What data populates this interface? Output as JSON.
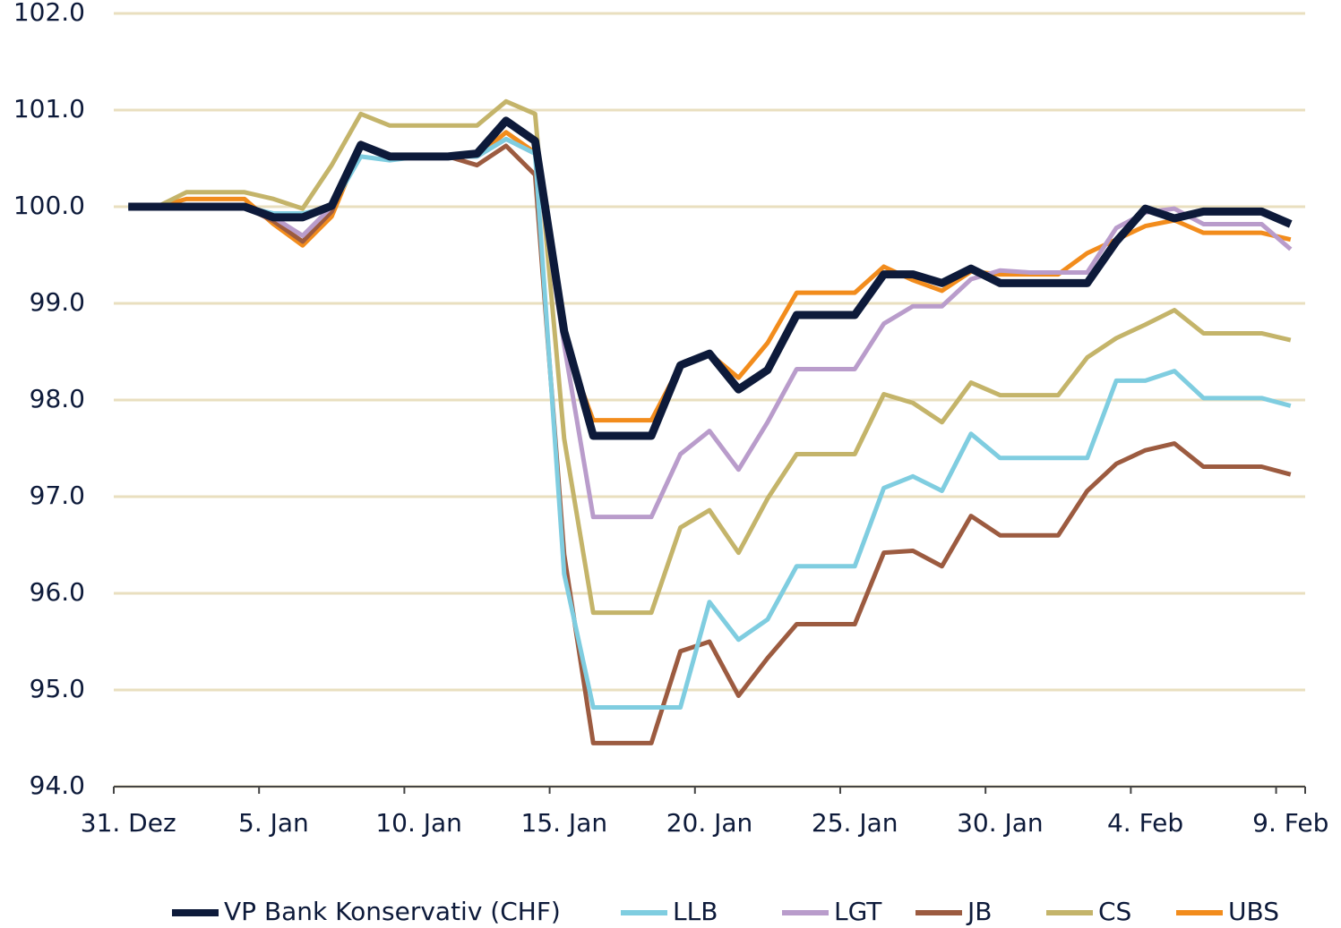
{
  "chart_data": {
    "type": "line",
    "categories": [
      "31. Dez",
      null,
      null,
      null,
      null,
      "5. Jan",
      null,
      null,
      null,
      null,
      "10. Jan",
      null,
      null,
      null,
      null,
      "15. Jan",
      null,
      null,
      null,
      null,
      "20. Jan",
      null,
      null,
      null,
      null,
      "25. Jan",
      null,
      null,
      null,
      null,
      "30. Jan",
      null,
      null,
      null,
      null,
      "4. Feb",
      null,
      null,
      null,
      null,
      "9. Feb"
    ],
    "ylim": [
      94,
      102
    ],
    "yticks": [
      {
        "value": 94,
        "label": "94.0"
      },
      {
        "value": 95,
        "label": "95.0"
      },
      {
        "value": 96,
        "label": "96.0"
      },
      {
        "value": 97,
        "label": "97.0"
      },
      {
        "value": 98,
        "label": "98.0"
      },
      {
        "value": 99,
        "label": "99.0"
      },
      {
        "value": 100,
        "label": "100.0"
      },
      {
        "value": 101,
        "label": "101.0"
      },
      {
        "value": 102,
        "label": "102.0"
      }
    ],
    "grid": true,
    "legend": "bottom",
    "series": [
      {
        "name": "VP Bank Konservativ (CHF)",
        "color": "#0d1a3a",
        "values": [
          100,
          100,
          100,
          100,
          100,
          99.89,
          99.89,
          100.01,
          100.64,
          100.52,
          100.52,
          100.52,
          100.55,
          100.89,
          100.68,
          98.71,
          97.63,
          97.63,
          97.63,
          98.36,
          98.48,
          98.11,
          98.31,
          98.88,
          98.88,
          98.88,
          99.3,
          99.3,
          99.21,
          99.36,
          99.21,
          99.21,
          99.21,
          99.21,
          99.64,
          99.98,
          99.88,
          99.95,
          99.95,
          99.95,
          99.82
        ]
      },
      {
        "name": "LLB",
        "color": "#7fcde0",
        "values": [
          100,
          100,
          100,
          100,
          100,
          99.93,
          99.93,
          100,
          100.52,
          100.48,
          100.52,
          100.52,
          100.52,
          100.7,
          100.55,
          96.2,
          94.82,
          94.82,
          94.82,
          94.82,
          95.91,
          95.52,
          95.73,
          96.28,
          96.28,
          96.28,
          97.09,
          97.21,
          97.06,
          97.65,
          97.4,
          97.4,
          97.4,
          97.4,
          98.2,
          98.2,
          98.3,
          98.02,
          98.02,
          98.02,
          97.94
        ]
      },
      {
        "name": "LGT",
        "color": "#b99ccb",
        "values": [
          100,
          100,
          100,
          100,
          100,
          99.89,
          99.7,
          100,
          100.62,
          100.52,
          100.52,
          100.52,
          100.52,
          100.7,
          100.55,
          98.57,
          96.79,
          96.79,
          96.79,
          97.44,
          97.68,
          97.28,
          97.77,
          98.32,
          98.32,
          98.32,
          98.79,
          98.97,
          98.97,
          99.25,
          99.34,
          99.32,
          99.32,
          99.32,
          99.78,
          99.94,
          99.98,
          99.82,
          99.82,
          99.82,
          99.56
        ]
      },
      {
        "name": "JB",
        "color": "#9c5b40",
        "values": [
          100,
          100,
          100,
          100,
          100,
          99.85,
          99.64,
          99.95,
          100.66,
          100.52,
          100.52,
          100.52,
          100.43,
          100.63,
          100.33,
          96.4,
          94.45,
          94.45,
          94.45,
          95.4,
          95.5,
          94.94,
          95.33,
          95.68,
          95.68,
          95.68,
          96.42,
          96.44,
          96.28,
          96.8,
          96.6,
          96.6,
          96.6,
          97.06,
          97.34,
          97.48,
          97.55,
          97.31,
          97.31,
          97.31,
          97.23
        ]
      },
      {
        "name": "CS",
        "color": "#c4b46a",
        "values": [
          100,
          100,
          100.15,
          100.15,
          100.15,
          100.08,
          99.98,
          100.43,
          100.96,
          100.84,
          100.84,
          100.84,
          100.84,
          101.09,
          100.96,
          97.6,
          95.8,
          95.8,
          95.8,
          96.68,
          96.86,
          96.42,
          96.98,
          97.44,
          97.44,
          97.44,
          98.06,
          97.97,
          97.77,
          98.18,
          98.05,
          98.05,
          98.05,
          98.44,
          98.64,
          98.78,
          98.93,
          98.69,
          98.69,
          98.69,
          98.62
        ]
      },
      {
        "name": "UBS",
        "color": "#f28c1c",
        "values": [
          100,
          100,
          100.08,
          100.08,
          100.08,
          99.82,
          99.6,
          99.9,
          100.62,
          100.52,
          100.52,
          100.52,
          100.52,
          100.77,
          100.56,
          98.6,
          97.79,
          97.79,
          97.79,
          98.36,
          98.48,
          98.23,
          98.59,
          99.11,
          99.11,
          99.11,
          99.38,
          99.24,
          99.13,
          99.33,
          99.3,
          99.3,
          99.3,
          99.52,
          99.66,
          99.8,
          99.86,
          99.73,
          99.73,
          99.73,
          99.66
        ]
      }
    ]
  }
}
